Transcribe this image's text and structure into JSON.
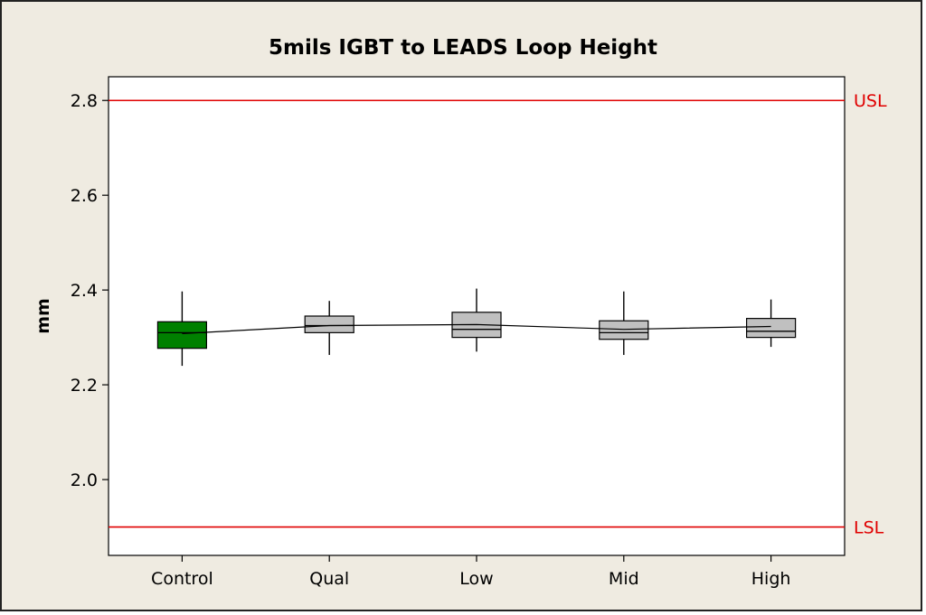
{
  "chart_data": {
    "type": "boxplot",
    "title": "5mils IGBT to LEADS Loop Height",
    "xlabel": "",
    "ylabel": "mm",
    "ylim": [
      1.84,
      2.85
    ],
    "yticks": [
      2.0,
      2.2,
      2.4,
      2.6,
      2.8
    ],
    "ytick_labels": [
      "2.0",
      "2.2",
      "2.4",
      "2.6",
      "2.8"
    ],
    "grid": false,
    "connect_means": true,
    "categories": [
      "Control",
      "Qual",
      "Low",
      "Mid",
      "High"
    ],
    "boxes": [
      {
        "category": "Control",
        "min": 2.24,
        "q1": 2.277,
        "median": 2.31,
        "q3": 2.333,
        "max": 2.397,
        "mean": 2.308,
        "color": "#008000"
      },
      {
        "category": "Qual",
        "min": 2.263,
        "q1": 2.31,
        "median": 2.325,
        "q3": 2.345,
        "max": 2.377,
        "mean": 2.325,
        "color": "#c0c0c0"
      },
      {
        "category": "Low",
        "min": 2.27,
        "q1": 2.3,
        "median": 2.317,
        "q3": 2.353,
        "max": 2.403,
        "mean": 2.327,
        "color": "#c0c0c0"
      },
      {
        "category": "Mid",
        "min": 2.263,
        "q1": 2.296,
        "median": 2.31,
        "q3": 2.335,
        "max": 2.397,
        "mean": 2.317,
        "color": "#c0c0c0"
      },
      {
        "category": "High",
        "min": 2.28,
        "q1": 2.3,
        "median": 2.313,
        "q3": 2.34,
        "max": 2.38,
        "mean": 2.323,
        "color": "#c0c0c0"
      }
    ],
    "reference_lines": [
      {
        "label": "USL",
        "value": 2.8,
        "color": "#e00000"
      },
      {
        "label": "LSL",
        "value": 1.9,
        "color": "#e00000"
      }
    ]
  }
}
